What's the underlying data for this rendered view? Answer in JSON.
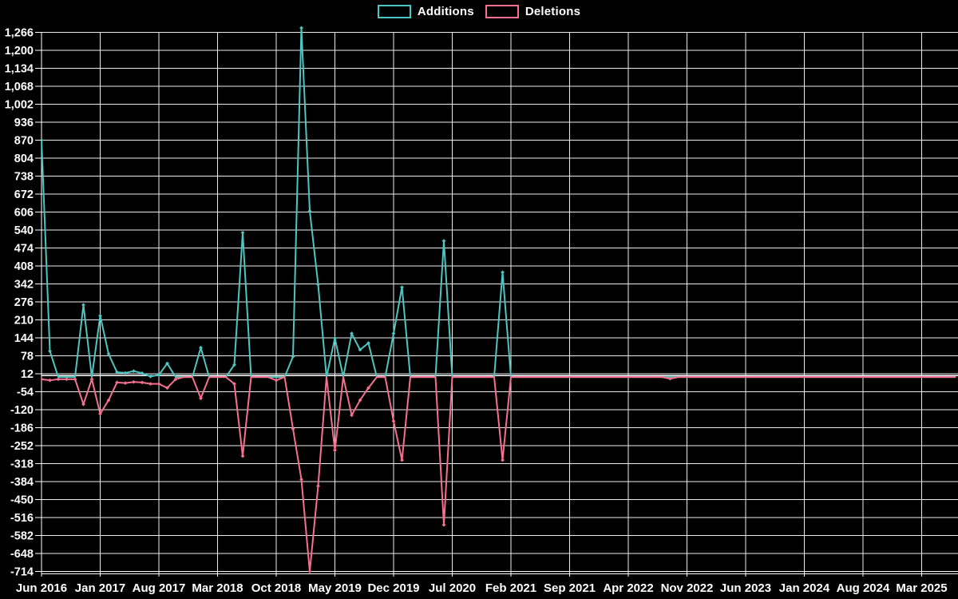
{
  "page": {
    "background": "#000000",
    "text_color": "#ffffff",
    "grid_color": "#ebebeb",
    "axis_color": "#ffffff"
  },
  "legend": {
    "items": [
      {
        "label": "Additions",
        "color": "#4ec5c1"
      },
      {
        "label": "Deletions",
        "color": "#f7708f"
      }
    ]
  },
  "chart_data": {
    "type": "line",
    "title": "",
    "xlabel": "",
    "ylabel": "",
    "legend_position": "top-center",
    "grid": true,
    "x_axis": {
      "start": "2016-06",
      "end": "2025-07",
      "tick_interval_months": 7,
      "tick_labels": [
        "Jun 2016",
        "Jan 2017",
        "Aug 2017",
        "Mar 2018",
        "Oct 2018",
        "May 2019",
        "Dec 2019",
        "Jul 2020",
        "Feb 2021",
        "Sep 2021",
        "Apr 2022",
        "Nov 2022",
        "Jun 2023",
        "Jan 2024",
        "Aug 2024",
        "Mar 2025"
      ]
    },
    "y_axis": {
      "min": -714,
      "max": 1266,
      "step": 66,
      "tick_labels": [
        "1,266",
        "1,200",
        "1,134",
        "1,068",
        "1,002",
        "936",
        "870",
        "804",
        "738",
        "672",
        "606",
        "540",
        "474",
        "408",
        "342",
        "276",
        "210",
        "144",
        "78",
        "12",
        "-54",
        "-120",
        "-186",
        "-252",
        "-318",
        "-384",
        "-450",
        "-516",
        "-582",
        "-648",
        "-714"
      ]
    },
    "series": [
      {
        "name": "Additions",
        "color": "#4ec5c1",
        "baseline": 0,
        "points": [
          [
            "2016-06",
            870
          ],
          [
            "2016-07",
            95
          ],
          [
            "2016-11",
            265
          ],
          [
            "2017-01",
            225
          ],
          [
            "2017-02",
            85
          ],
          [
            "2017-03",
            18
          ],
          [
            "2017-04",
            15
          ],
          [
            "2017-05",
            22
          ],
          [
            "2017-06",
            14
          ],
          [
            "2017-07",
            2
          ],
          [
            "2017-08",
            8
          ],
          [
            "2017-09",
            50
          ],
          [
            "2018-01",
            108
          ],
          [
            "2018-05",
            45
          ],
          [
            "2018-06",
            530
          ],
          [
            "2018-12",
            75
          ],
          [
            "2019-01",
            1282
          ],
          [
            "2019-02",
            610
          ],
          [
            "2019-03",
            340
          ],
          [
            "2019-05",
            143
          ],
          [
            "2019-07",
            160
          ],
          [
            "2019-08",
            100
          ],
          [
            "2019-09",
            125
          ],
          [
            "2019-12",
            160
          ],
          [
            "2020-01",
            330
          ],
          [
            "2020-06",
            500
          ],
          [
            "2021-01",
            385
          ]
        ]
      },
      {
        "name": "Deletions",
        "color": "#f7708f",
        "baseline": 0,
        "points": [
          [
            "2016-06",
            -8
          ],
          [
            "2016-07",
            -12
          ],
          [
            "2016-08",
            -8
          ],
          [
            "2016-09",
            -8
          ],
          [
            "2016-10",
            -8
          ],
          [
            "2016-11",
            -100
          ],
          [
            "2016-12",
            -8
          ],
          [
            "2017-01",
            -135
          ],
          [
            "2017-02",
            -85
          ],
          [
            "2017-03",
            -20
          ],
          [
            "2017-04",
            -22
          ],
          [
            "2017-05",
            -18
          ],
          [
            "2017-06",
            -20
          ],
          [
            "2017-07",
            -25
          ],
          [
            "2017-08",
            -25
          ],
          [
            "2017-09",
            -40
          ],
          [
            "2017-10",
            -8
          ],
          [
            "2018-01",
            -78
          ],
          [
            "2018-05",
            -25
          ],
          [
            "2018-06",
            -290
          ],
          [
            "2018-10",
            -12
          ],
          [
            "2018-12",
            -190
          ],
          [
            "2019-01",
            -376
          ],
          [
            "2019-02",
            -714
          ],
          [
            "2019-03",
            -400
          ],
          [
            "2019-05",
            -269
          ],
          [
            "2019-07",
            -140
          ],
          [
            "2019-08",
            -85
          ],
          [
            "2019-09",
            -40
          ],
          [
            "2019-12",
            -162
          ],
          [
            "2020-01",
            -305
          ],
          [
            "2020-06",
            -543
          ],
          [
            "2021-01",
            -305
          ],
          [
            "2022-09",
            -6
          ]
        ]
      }
    ]
  }
}
